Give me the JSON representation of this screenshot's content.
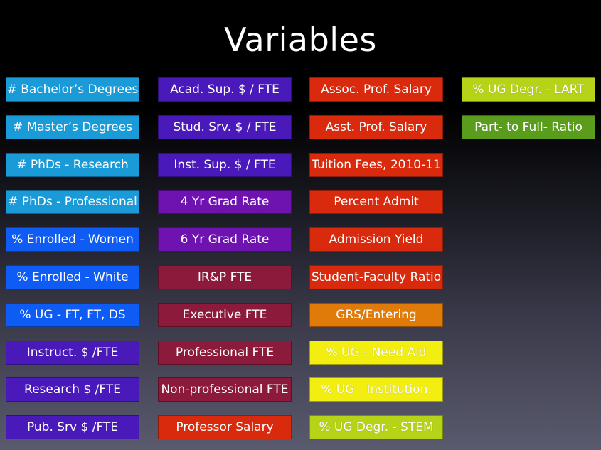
{
  "slide": {
    "title": "Variables"
  },
  "colors": {
    "cyan": "#1a9ad6",
    "blue": "#0f5cf5",
    "indigo": "#4a19ba",
    "purple": "#6e12b0",
    "crimson": "#8c1a3a",
    "red": "#d92a0d",
    "orange": "#e07b0a",
    "yellow": "#f2ee10",
    "lime": "#b6d318",
    "green": "#5a9c1c"
  },
  "columns": [
    {
      "items": [
        {
          "label": "# Bachelor’s Degrees",
          "color": "cyan"
        },
        {
          "label": "# Master’s Degrees",
          "color": "cyan"
        },
        {
          "label": "# PhDs - Research",
          "color": "cyan"
        },
        {
          "label": "# PhDs - Professional",
          "color": "cyan"
        },
        {
          "label": "% Enrolled - Women",
          "color": "blue"
        },
        {
          "label": "% Enrolled - White",
          "color": "blue"
        },
        {
          "label": "% UG - FT, FT, DS",
          "color": "blue"
        },
        {
          "label": "Instruct. $ /FTE",
          "color": "indigo"
        },
        {
          "label": "Research $ /FTE",
          "color": "indigo"
        },
        {
          "label": "Pub. Srv $ /FTE",
          "color": "indigo"
        }
      ]
    },
    {
      "items": [
        {
          "label": "Acad. Sup. $ / FTE",
          "color": "indigo"
        },
        {
          "label": "Stud. Srv. $ / FTE",
          "color": "indigo"
        },
        {
          "label": "Inst. Sup. $ / FTE",
          "color": "indigo"
        },
        {
          "label": "4 Yr Grad Rate",
          "color": "purple"
        },
        {
          "label": "6 Yr Grad Rate",
          "color": "purple"
        },
        {
          "label": "IR&P FTE",
          "color": "crimson"
        },
        {
          "label": "Executive FTE",
          "color": "crimson"
        },
        {
          "label": "Professional FTE",
          "color": "crimson"
        },
        {
          "label": "Non-professional FTE",
          "color": "crimson"
        },
        {
          "label": "Professor Salary",
          "color": "red"
        }
      ]
    },
    {
      "items": [
        {
          "label": "Assoc. Prof. Salary",
          "color": "red"
        },
        {
          "label": "Asst. Prof. Salary",
          "color": "red"
        },
        {
          "label": "Tuition Fees, 2010-11",
          "color": "red"
        },
        {
          "label": "Percent Admit",
          "color": "red"
        },
        {
          "label": "Admission Yield",
          "color": "red"
        },
        {
          "label": "Student-Faculty Ratio",
          "color": "red"
        },
        {
          "label": "GRS/Entering",
          "color": "orange"
        },
        {
          "label": "% UG - Need Aid",
          "color": "yellow"
        },
        {
          "label": "% UG - Institution.",
          "color": "yellow"
        },
        {
          "label": "% UG Degr. - STEM",
          "color": "lime"
        }
      ]
    },
    {
      "items": [
        {
          "label": "% UG Degr. - LART",
          "color": "lime"
        },
        {
          "label": "Part- to Full- Ratio",
          "color": "green"
        }
      ]
    }
  ]
}
